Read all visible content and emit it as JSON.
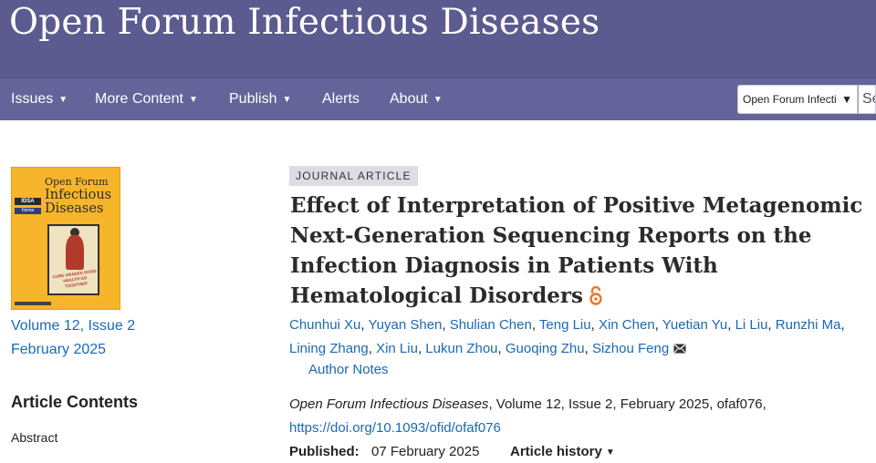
{
  "header": {
    "journal_title": "Open Forum Infectious Diseases"
  },
  "nav": {
    "items": [
      {
        "label": "Issues",
        "caret": "▼"
      },
      {
        "label": "More Content",
        "caret": "▼"
      },
      {
        "label": "Publish",
        "caret": "▼"
      },
      {
        "label": "Alerts",
        "caret": ""
      },
      {
        "label": "About",
        "caret": "▼"
      }
    ],
    "select_value": "Open Forum Infectic",
    "select_caret": "▼",
    "search_placeholder": "Se"
  },
  "sidebar": {
    "cover": {
      "title_line1": "Open Forum",
      "title_line2": "Infectious",
      "title_line3": "Diseases",
      "logo1": "IDSA",
      "logo2": "hivma",
      "poster_text": "CURE GRADES GOOD HEALTH GO TOGETHER"
    },
    "volume_issue": "Volume 12, Issue 2",
    "issue_date": "February 2025",
    "contents_heading": "Article Contents",
    "contents_items": [
      "Abstract"
    ]
  },
  "article": {
    "type_label": "JOURNAL ARTICLE",
    "title": "Effect of Interpretation of Positive Metagenomic Next-Generation Sequencing Reports on the Infection Diagnosis in Patients With Hematological Disorders",
    "open_access_icon": "open-access-icon",
    "authors": [
      "Chunhui Xu",
      "Yuyan Shen",
      "Shulian Chen",
      "Teng Liu",
      "Xin Chen",
      "Yuetian Yu",
      "Li Liu",
      "Runzhi Ma",
      "Lining Zhang",
      "Xin Liu",
      "Lukun Zhou",
      "Guoqing Zhu",
      "Sizhou Feng"
    ],
    "author_notes": "Author Notes",
    "citation_journal": "Open Forum Infectious Diseases",
    "citation_rest": ", Volume 12, Issue 2, February 2025, ofaf076,",
    "doi": "https://doi.org/10.1093/ofid/ofaf076",
    "published_label": "Published:",
    "published_date": "07 February 2025",
    "history_label": "Article history",
    "history_caret": "▼"
  },
  "colors": {
    "header_bg": "#5b5b8f",
    "nav_bg": "#64649a",
    "link": "#1a69b5",
    "open_access": "#e8762c",
    "cover_bg": "#f6b52a"
  }
}
